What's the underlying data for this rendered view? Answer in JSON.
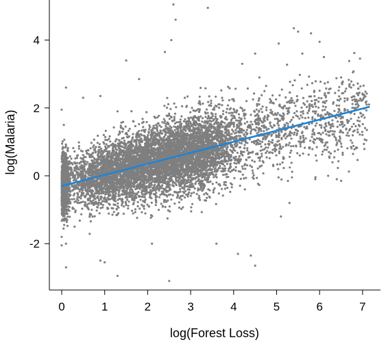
{
  "chart_data": {
    "type": "scatter",
    "xlabel": "log(Forest Loss)",
    "ylabel": "log(Malaria)",
    "xlim": [
      -0.25,
      7.25
    ],
    "ylim": [
      -3.3,
      5.1
    ],
    "x_ticks": [
      "0",
      "1",
      "2",
      "3",
      "4",
      "5",
      "6",
      "7"
    ],
    "y_ticks": [
      "-2",
      "0",
      "2",
      "4"
    ],
    "grid": false,
    "legend": "none",
    "point_color": "#7f7f7f",
    "fit_color": "#1f84d6",
    "fit_line": {
      "x": [
        0,
        7.15
      ],
      "y": [
        -0.3,
        2.03
      ]
    },
    "points": [
      [
        0.0,
        1.95
      ],
      [
        0.1,
        2.6
      ],
      [
        0.05,
        1.5
      ],
      [
        0.0,
        -2.05
      ],
      [
        0.1,
        -2.7
      ],
      [
        0.0,
        -1.8
      ],
      [
        0.3,
        -1.5
      ],
      [
        0.1,
        -2.0
      ],
      [
        0.5,
        2.3
      ],
      [
        0.9,
        2.35
      ],
      [
        1.3,
        1.9
      ],
      [
        0.9,
        -2.5
      ],
      [
        1.0,
        -2.55
      ],
      [
        1.3,
        -2.95
      ],
      [
        1.5,
        3.4
      ],
      [
        1.8,
        2.85
      ],
      [
        2.1,
        -2.0
      ],
      [
        2.5,
        -3.1
      ],
      [
        2.6,
        5.05
      ],
      [
        2.65,
        4.6
      ],
      [
        2.55,
        4.0
      ],
      [
        2.4,
        3.65
      ],
      [
        3.4,
        4.95
      ],
      [
        4.2,
        3.3
      ],
      [
        4.5,
        3.6
      ],
      [
        4.6,
        2.9
      ],
      [
        5.05,
        3.9
      ],
      [
        5.4,
        4.35
      ],
      [
        5.5,
        4.25
      ],
      [
        5.6,
        3.6
      ],
      [
        5.8,
        4.2
      ],
      [
        6.0,
        3.95
      ],
      [
        6.1,
        3.5
      ],
      [
        6.5,
        2.9
      ],
      [
        6.7,
        2.7
      ],
      [
        7.0,
        2.4
      ],
      [
        7.15,
        2.1
      ],
      [
        7.1,
        1.35
      ],
      [
        6.8,
        2.0
      ],
      [
        6.2,
        0.0
      ],
      [
        6.3,
        0.4
      ],
      [
        6.4,
        -0.1
      ],
      [
        6.5,
        -0.15
      ],
      [
        5.9,
        -0.1
      ],
      [
        4.4,
        -2.35
      ],
      [
        4.5,
        -2.65
      ],
      [
        4.1,
        -2.3
      ],
      [
        3.6,
        -2.0
      ],
      [
        5.3,
        -0.8
      ],
      [
        5.1,
        -1.2
      ]
    ]
  }
}
